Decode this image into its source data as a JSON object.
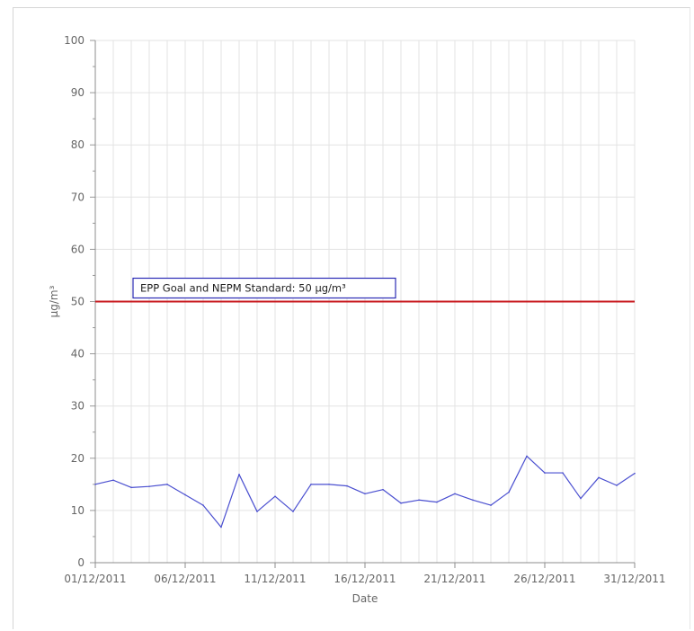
{
  "chart_data": {
    "type": "line",
    "xlabel": "Date",
    "ylabel": "µg/m³",
    "ylim": [
      0,
      100
    ],
    "y_ticks": [
      0,
      10,
      20,
      30,
      40,
      50,
      60,
      70,
      80,
      90,
      100
    ],
    "x_tick_labels": [
      "01/12/2011",
      "06/12/2011",
      "11/12/2011",
      "16/12/2011",
      "21/12/2011",
      "26/12/2011",
      "31/12/2011"
    ],
    "x": [
      "01/12/2011",
      "02/12/2011",
      "03/12/2011",
      "04/12/2011",
      "05/12/2011",
      "06/12/2011",
      "07/12/2011",
      "08/12/2011",
      "09/12/2011",
      "10/12/2011",
      "11/12/2011",
      "12/12/2011",
      "13/12/2011",
      "14/12/2011",
      "15/12/2011",
      "16/12/2011",
      "17/12/2011",
      "18/12/2011",
      "19/12/2011",
      "20/12/2011",
      "21/12/2011",
      "22/12/2011",
      "23/12/2011",
      "24/12/2011",
      "25/12/2011",
      "26/12/2011",
      "27/12/2011",
      "28/12/2011",
      "29/12/2011",
      "30/12/2011",
      "31/12/2011"
    ],
    "series": [
      {
        "color": "#4a4fd0",
        "values": [
          15.0,
          15.8,
          14.4,
          14.6,
          15.0,
          13.0,
          11.0,
          6.8,
          16.9,
          9.8,
          12.7,
          9.8,
          15.0,
          15.0,
          14.7,
          13.2,
          14.0,
          11.4,
          12.0,
          11.6,
          13.2,
          12.0,
          11.0,
          13.5,
          20.4,
          17.2,
          17.2,
          12.3,
          16.3,
          14.8,
          17.1
        ]
      }
    ],
    "reference_line": {
      "value": 50,
      "color": "#c8171c",
      "label": "EPP Goal and NEPM Standard: 50 µg/m³",
      "label_border_color": "#2b2bb5"
    },
    "grid": true
  }
}
